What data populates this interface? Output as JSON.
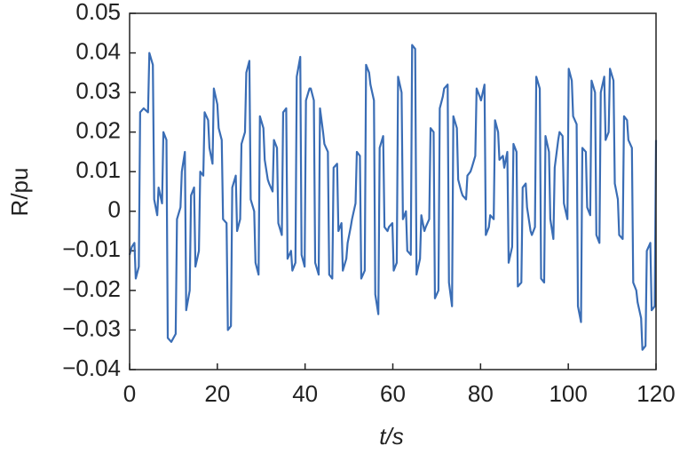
{
  "chart_data": {
    "type": "line",
    "xlabel": "t/s",
    "ylabel": "R/pu",
    "xlim": [
      0,
      120
    ],
    "xticks": [
      0,
      20,
      40,
      60,
      80,
      100,
      120
    ],
    "ylim": [
      -0.04,
      0.05
    ],
    "yticks": [
      {
        "value": -0.04,
        "label": "−0.04"
      },
      {
        "value": -0.03,
        "label": "−0.03"
      },
      {
        "value": -0.02,
        "label": "−0.02"
      },
      {
        "value": -0.01,
        "label": "−0.01"
      },
      0,
      0.01,
      0.02,
      0.03,
      0.04,
      0.05
    ],
    "series": [
      {
        "color": "#3a6db5",
        "x": [
          0,
          0.5,
          1.1,
          1.4,
          2.1,
          2.4,
          3.2,
          4.2,
          4.5,
          5.3,
          5.6,
          6.3,
          6.6,
          7.4,
          7.7,
          8.4,
          8.7,
          9.5,
          10.5,
          10.8,
          11.6,
          11.9,
          12.6,
          12.9,
          13.7,
          14.0,
          14.7,
          15.0,
          15.8,
          16.1,
          16.8,
          17.1,
          17.9,
          18.2,
          18.9,
          19.2,
          20.0,
          20.3,
          21.0,
          21.3,
          22.1,
          22.4,
          23.1,
          23.4,
          24.2,
          24.5,
          25.2,
          25.5,
          26.3,
          26.6,
          27.3,
          27.6,
          28.4,
          28.7,
          29.4,
          29.7,
          30.5,
          30.8,
          31.5,
          31.8,
          32.6,
          32.9,
          33.6,
          33.9,
          34.7,
          35.0,
          35.7,
          36.0,
          36.8,
          37.1,
          37.8,
          38.1,
          38.9,
          39.2,
          39.9,
          40.2,
          41.0,
          41.3,
          42.0,
          42.3,
          43.1,
          43.4,
          44.1,
          44.4,
          45.2,
          45.5,
          46.2,
          46.5,
          47.3,
          47.6,
          48.3,
          48.6,
          49.4,
          49.7,
          50.4,
          50.7,
          51.5,
          51.8,
          52.5,
          52.8,
          53.6,
          53.9,
          54.6,
          54.9,
          55.7,
          56.0,
          56.7,
          57.0,
          57.8,
          58.1,
          58.8,
          59.1,
          59.9,
          60.2,
          60.9,
          61.2,
          62.0,
          62.3,
          63.0,
          63.3,
          64.1,
          64.4,
          65.1,
          65.4,
          66.2,
          66.5,
          67.2,
          67.5,
          68.3,
          68.6,
          69.3,
          69.6,
          70.4,
          70.7,
          71.4,
          71.7,
          72.5,
          72.8,
          73.5,
          73.8,
          74.6,
          74.9,
          75.6,
          75.9,
          76.7,
          77.0,
          77.7,
          78.0,
          78.8,
          79.1,
          79.8,
          80.1,
          80.9,
          81.2,
          81.9,
          82.2,
          83.0,
          83.3,
          84.0,
          84.3,
          85.1,
          85.4,
          86.1,
          86.4,
          87.2,
          87.5,
          88.2,
          88.5,
          89.3,
          89.6,
          90.3,
          90.6,
          91.4,
          91.7,
          92.4,
          92.7,
          93.5,
          93.8,
          94.5,
          94.8,
          95.6,
          95.9,
          96.6,
          96.9,
          97.7,
          98.0,
          98.7,
          99.0,
          99.8,
          100.1,
          100.8,
          101.1,
          101.9,
          102.2,
          102.9,
          103.2,
          104.0,
          104.3,
          105.0,
          105.3,
          106.1,
          106.4,
          107.1,
          107.4,
          108.2,
          108.5,
          109.2,
          109.5,
          110.3,
          110.6,
          111.3,
          111.6,
          112.4,
          112.7,
          113.4,
          113.7,
          114.5,
          114.8,
          115.5,
          115.8,
          116.6,
          116.9,
          117.6,
          117.9,
          118.7,
          119.0,
          119.7,
          120.0
        ],
        "values": [
          -0.011,
          -0.009,
          -0.008,
          -0.017,
          -0.014,
          0.025,
          0.026,
          0.025,
          0.04,
          0.037,
          0.003,
          -0.001,
          0.006,
          0.002,
          0.02,
          0.018,
          -0.032,
          -0.033,
          -0.031,
          -0.002,
          0.001,
          0.01,
          0.015,
          -0.025,
          -0.02,
          0.004,
          0.006,
          -0.014,
          -0.01,
          0.01,
          0.009,
          0.025,
          0.023,
          0.016,
          0.012,
          0.031,
          0.027,
          0.021,
          0.018,
          -0.002,
          -0.003,
          -0.03,
          -0.029,
          0.006,
          0.009,
          -0.005,
          -0.002,
          0.017,
          0.02,
          0.035,
          0.038,
          0.003,
          0.0,
          -0.013,
          -0.016,
          0.024,
          0.021,
          0.013,
          0.008,
          0.007,
          0.005,
          0.018,
          0.016,
          -0.003,
          -0.006,
          0.025,
          0.026,
          -0.012,
          -0.01,
          -0.015,
          -0.013,
          0.034,
          0.039,
          -0.011,
          -0.014,
          0.028,
          0.031,
          0.031,
          0.028,
          -0.013,
          -0.016,
          0.026,
          0.02,
          0.017,
          0.015,
          -0.016,
          -0.017,
          0.011,
          0.012,
          -0.005,
          -0.003,
          -0.015,
          -0.012,
          -0.008,
          -0.004,
          -0.002,
          0.002,
          0.015,
          0.014,
          -0.017,
          -0.015,
          0.037,
          0.035,
          0.032,
          0.028,
          -0.021,
          -0.026,
          0.016,
          0.019,
          -0.004,
          -0.005,
          -0.004,
          -0.003,
          -0.015,
          -0.013,
          0.034,
          0.03,
          -0.002,
          0.0,
          -0.01,
          -0.011,
          0.042,
          0.041,
          -0.016,
          -0.012,
          -0.001,
          -0.005,
          -0.004,
          -0.002,
          0.021,
          0.02,
          -0.022,
          -0.02,
          0.026,
          0.029,
          0.031,
          0.032,
          -0.018,
          -0.024,
          0.024,
          0.021,
          0.008,
          0.005,
          0.004,
          0.003,
          0.009,
          0.01,
          0.011,
          0.014,
          0.031,
          0.029,
          0.028,
          0.032,
          -0.006,
          -0.004,
          -0.001,
          -0.002,
          0.023,
          0.02,
          0.013,
          0.014,
          0.011,
          0.015,
          -0.013,
          -0.009,
          0.017,
          0.015,
          -0.019,
          -0.018,
          0.006,
          0.007,
          0.001,
          -0.005,
          -0.006,
          -0.004,
          0.034,
          0.031,
          -0.017,
          -0.018,
          0.019,
          0.015,
          -0.002,
          -0.007,
          0.011,
          0.018,
          0.02,
          0.019,
          0.002,
          -0.002,
          0.036,
          0.033,
          0.024,
          0.022,
          -0.024,
          -0.028,
          0.016,
          0.015,
          0.001,
          -0.001,
          0.033,
          0.03,
          -0.006,
          -0.008,
          0.03,
          0.034,
          0.018,
          0.02,
          0.036,
          0.033,
          0.007,
          0.003,
          -0.006,
          -0.007,
          0.024,
          0.023,
          0.018,
          0.016,
          -0.018,
          -0.02,
          -0.023,
          -0.027,
          -0.035,
          -0.034,
          -0.01,
          -0.008,
          -0.025,
          -0.024,
          0.018
        ]
      }
    ]
  }
}
